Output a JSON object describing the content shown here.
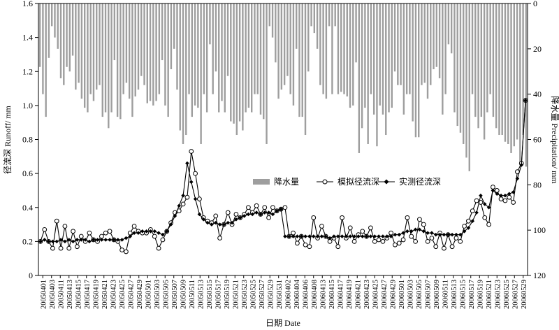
{
  "chart_data": {
    "type": "line",
    "xlabel": "日期 Date",
    "ylabel_left": "径流深 Runoff/ mm",
    "ylabel_right": "降水量 Precipitation/ mm",
    "ylim_left": [
      0,
      1.6
    ],
    "yticks_left": [
      "0",
      "0.2",
      "0.4",
      "0.6",
      "0.8",
      "1.0",
      "1.2",
      "1.4",
      "1.6"
    ],
    "ylim_right_inverted": [
      0,
      120
    ],
    "yticks_right": [
      "0",
      "20",
      "40",
      "60",
      "80",
      "100",
      "120"
    ],
    "xtick_labels": [
      "20050401",
      "20050403",
      "20050411",
      "20050413",
      "20050415",
      "20050417",
      "20050419",
      "20050421",
      "20050423",
      "20050425",
      "20050427",
      "20050429",
      "20050501",
      "20050503",
      "20050505",
      "20050507",
      "20050509",
      "20050511",
      "20050513",
      "20050515",
      "20050517",
      "20050519",
      "20050521",
      "20050523",
      "20050525",
      "20050527",
      "20050529",
      "20050531",
      "20060402",
      "20060404",
      "20060406",
      "20060408",
      "20060413",
      "20060415",
      "20060417",
      "20060419",
      "20060421",
      "20060423",
      "20060425",
      "20060427",
      "20060429",
      "20060501",
      "20060503",
      "20060505",
      "20060507",
      "20060509",
      "20060511",
      "20060513",
      "20060515",
      "20060517",
      "20060519",
      "20060521",
      "20060523",
      "20060525",
      "20060527",
      "20060529"
    ],
    "legend": [
      {
        "key": "precip",
        "label": "降水量",
        "color": "#9e9e9e"
      },
      {
        "key": "sim",
        "label": "模拟径流深",
        "marker": "open-circle"
      },
      {
        "key": "obs",
        "label": "实测径流深",
        "marker": "filled-diamond"
      }
    ],
    "series": [
      {
        "name": "降水量",
        "values": [
          28,
          40,
          50,
          24,
          10,
          15,
          20,
          33,
          36,
          28,
          30,
          23,
          38,
          35,
          42,
          46,
          48,
          40,
          43,
          38,
          36,
          50,
          48,
          55,
          48,
          25,
          50,
          51,
          40,
          35,
          42,
          50,
          41,
          38,
          32,
          36,
          44,
          43,
          45,
          43,
          40,
          25,
          45,
          50,
          29,
          20,
          38,
          56,
          62,
          58,
          40,
          50,
          45,
          46,
          62,
          40,
          48,
          18,
          40,
          30,
          48,
          43,
          48,
          32,
          52,
          53,
          58,
          52,
          56,
          48,
          46,
          48,
          40,
          40,
          49,
          51,
          62,
          10,
          15,
          26,
          42,
          38,
          36,
          32,
          40,
          45,
          20,
          50,
          50,
          58,
          30,
          10,
          13,
          20,
          36,
          40,
          42,
          10,
          40,
          10,
          40,
          39,
          40,
          41,
          46,
          45,
          26,
          66,
          55,
          46,
          62,
          40,
          49,
          63,
          45,
          49,
          58,
          48,
          46,
          30,
          36,
          36,
          49,
          40,
          40,
          52,
          59,
          59,
          36,
          35,
          42,
          36,
          29,
          28,
          33,
          49,
          40,
          18,
          22,
          48,
          54,
          57,
          62,
          68,
          74,
          40,
          50,
          55,
          50,
          60,
          48,
          40,
          50,
          55,
          58,
          58,
          61,
          62,
          66,
          63,
          60,
          70,
          58,
          72
        ]
      },
      {
        "name": "模拟径流深",
        "values": [
          0.2,
          0.27,
          0.2,
          0.16,
          0.32,
          0.16,
          0.29,
          0.16,
          0.26,
          0.17,
          0.23,
          0.2,
          0.25,
          0.21,
          0.2,
          0.23,
          0.25,
          0.26,
          0.21,
          0.2,
          0.15,
          0.14,
          0.25,
          0.29,
          0.26,
          0.25,
          0.25,
          0.27,
          0.23,
          0.16,
          0.21,
          0.26,
          0.31,
          0.37,
          0.38,
          0.42,
          0.46,
          0.73,
          0.6,
          0.45,
          0.34,
          0.32,
          0.31,
          0.35,
          0.22,
          0.3,
          0.37,
          0.3,
          0.36,
          0.34,
          0.36,
          0.4,
          0.37,
          0.41,
          0.36,
          0.4,
          0.34,
          0.4,
          0.38,
          0.39,
          0.4,
          0.23,
          0.25,
          0.19,
          0.23,
          0.18,
          0.17,
          0.34,
          0.22,
          0.29,
          0.23,
          0.2,
          0.22,
          0.17,
          0.34,
          0.22,
          0.28,
          0.2,
          0.24,
          0.26,
          0.23,
          0.28,
          0.2,
          0.21,
          0.2,
          0.22,
          0.25,
          0.18,
          0.19,
          0.21,
          0.34,
          0.23,
          0.2,
          0.33,
          0.3,
          0.2,
          0.22,
          0.17,
          0.25,
          0.16,
          0.24,
          0.17,
          0.22,
          0.2,
          0.29,
          0.32,
          0.38,
          0.44,
          0.43,
          0.34,
          0.3,
          0.52,
          0.5,
          0.45,
          0.44,
          0.46,
          0.43,
          0.61,
          0.66,
          1.03
        ]
      },
      {
        "name": "实测径流深",
        "values": [
          0.2,
          0.21,
          0.2,
          0.2,
          0.2,
          0.21,
          0.2,
          0.21,
          0.2,
          0.21,
          0.21,
          0.21,
          0.2,
          0.21,
          0.21,
          0.21,
          0.21,
          0.21,
          0.21,
          0.21,
          0.21,
          0.22,
          0.23,
          0.25,
          0.25,
          0.26,
          0.26,
          0.26,
          0.26,
          0.25,
          0.24,
          0.26,
          0.3,
          0.35,
          0.41,
          0.47,
          0.66,
          0.55,
          0.45,
          0.36,
          0.33,
          0.31,
          0.3,
          0.31,
          0.3,
          0.3,
          0.31,
          0.31,
          0.33,
          0.34,
          0.35,
          0.36,
          0.36,
          0.37,
          0.36,
          0.37,
          0.37,
          0.36,
          0.38,
          0.39,
          0.23,
          0.23,
          0.23,
          0.23,
          0.23,
          0.23,
          0.23,
          0.23,
          0.23,
          0.23,
          0.23,
          0.22,
          0.23,
          0.23,
          0.23,
          0.23,
          0.23,
          0.23,
          0.23,
          0.23,
          0.23,
          0.23,
          0.23,
          0.23,
          0.23,
          0.23,
          0.23,
          0.24,
          0.24,
          0.25,
          0.26,
          0.26,
          0.27,
          0.27,
          0.26,
          0.25,
          0.25,
          0.24,
          0.24,
          0.24,
          0.24,
          0.24,
          0.24,
          0.24,
          0.26,
          0.28,
          0.32,
          0.37,
          0.47,
          0.42,
          0.4,
          0.5,
          0.48,
          0.47,
          0.47,
          0.48,
          0.49,
          0.57,
          0.65,
          1.03
        ]
      }
    ]
  }
}
